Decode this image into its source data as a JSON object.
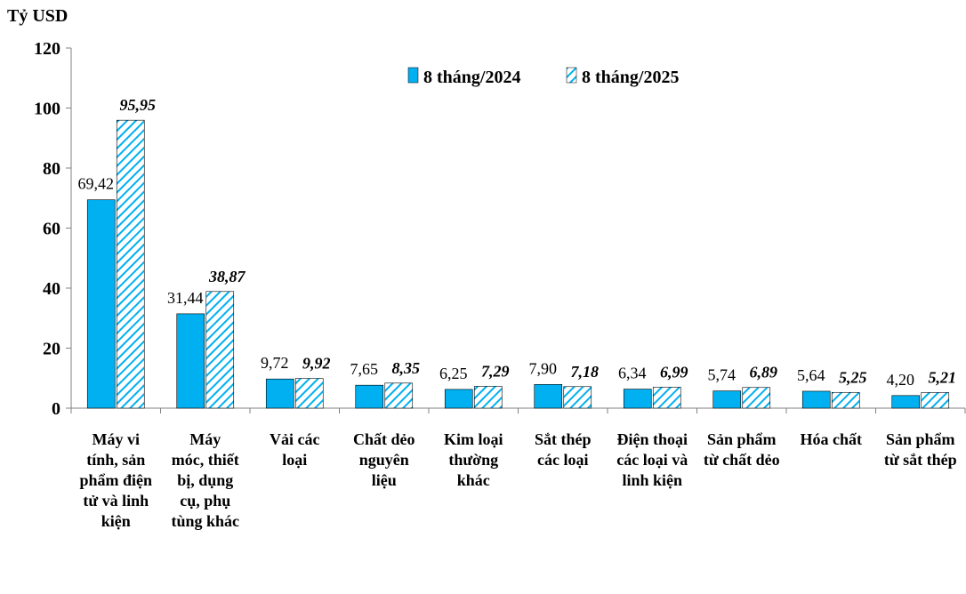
{
  "chart_data": {
    "type": "bar",
    "ylabel": "Tỷ USD",
    "ylim": [
      0,
      120
    ],
    "yticks": [
      "0",
      "20",
      "40",
      "60",
      "80",
      "100",
      "120"
    ],
    "categories": [
      [
        "Máy vi",
        "tính, sản",
        "phẩm điện",
        "tử và linh",
        "kiện"
      ],
      [
        "Máy",
        "móc, thiết",
        "bị, dụng",
        "cụ, phụ",
        "tùng khác"
      ],
      [
        "Vải các",
        "loại"
      ],
      [
        "Chất dẻo",
        "nguyên",
        "liệu"
      ],
      [
        "Kim loại",
        "thường",
        "khác"
      ],
      [
        "Sắt thép",
        "các loại"
      ],
      [
        "Điện thoại",
        "các loại và",
        "linh kiện"
      ],
      [
        "Sản phẩm",
        "từ chất dẻo"
      ],
      [
        "Hóa chất"
      ],
      [
        "Sản phẩm",
        "từ sắt thép"
      ]
    ],
    "series": [
      {
        "name": "8 tháng/2024",
        "values": [
          69.42,
          31.44,
          9.72,
          7.65,
          6.25,
          7.9,
          6.34,
          5.74,
          5.64,
          4.2
        ],
        "labels": [
          "69,42",
          "31,44",
          "9,72",
          "7,65",
          "6,25",
          "7,90",
          "6,34",
          "5,74",
          "5,64",
          "4,20"
        ],
        "color": "#00B0F0"
      },
      {
        "name": "8 tháng/2025",
        "values": [
          95.95,
          38.87,
          9.92,
          8.35,
          7.29,
          7.18,
          6.99,
          6.89,
          5.25,
          5.21
        ],
        "labels": [
          "95,95",
          "38,87",
          "9,92",
          "8,35",
          "7,29",
          "7,18",
          "6,99",
          "6,89",
          "5,25",
          "5,21"
        ],
        "color": "#00B0F0",
        "pattern": "diagonal-hatch"
      }
    ],
    "legend": "top-right",
    "grid": false
  }
}
